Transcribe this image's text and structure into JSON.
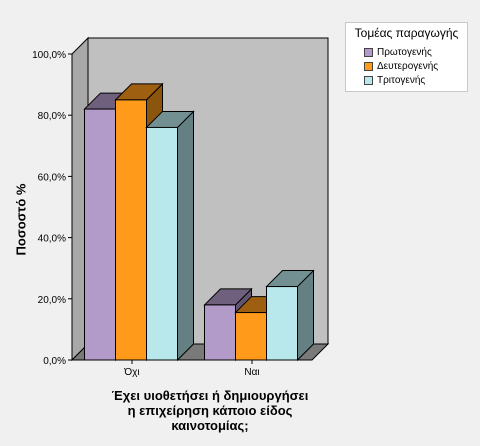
{
  "chart_data": {
    "type": "bar",
    "categories": [
      "Όχι",
      "Ναι"
    ],
    "series": [
      {
        "name": "Πρωτογενής",
        "values": [
          82,
          18
        ],
        "color": "#b39bc9"
      },
      {
        "name": "Δευτερογενής",
        "values": [
          85,
          15.5
        ],
        "color": "#ff9a1a"
      },
      {
        "name": "Τριτογενής",
        "values": [
          76,
          24
        ],
        "color": "#b8e8ec"
      }
    ],
    "ylim": [
      0,
      100
    ],
    "yticks": [
      "0,0%",
      "20,0%",
      "40,0%",
      "60,0%",
      "80,0%",
      "100,0%"
    ],
    "ytick_values": [
      0,
      20,
      40,
      60,
      80,
      100
    ],
    "ylabel": "Ποσοστό %",
    "xlabel_lines": [
      "Έχει υιοθετήσει ή δημιουργήσει",
      "η επιχείρηση κάποιο είδος",
      "καινοτομίας;"
    ],
    "legend_title": "Τομέας παραγωγής",
    "legend_position": "top-right",
    "grid": false,
    "three_d": true,
    "wall_color": "#c0c0c0",
    "floor_color": "#7a7a7a"
  }
}
